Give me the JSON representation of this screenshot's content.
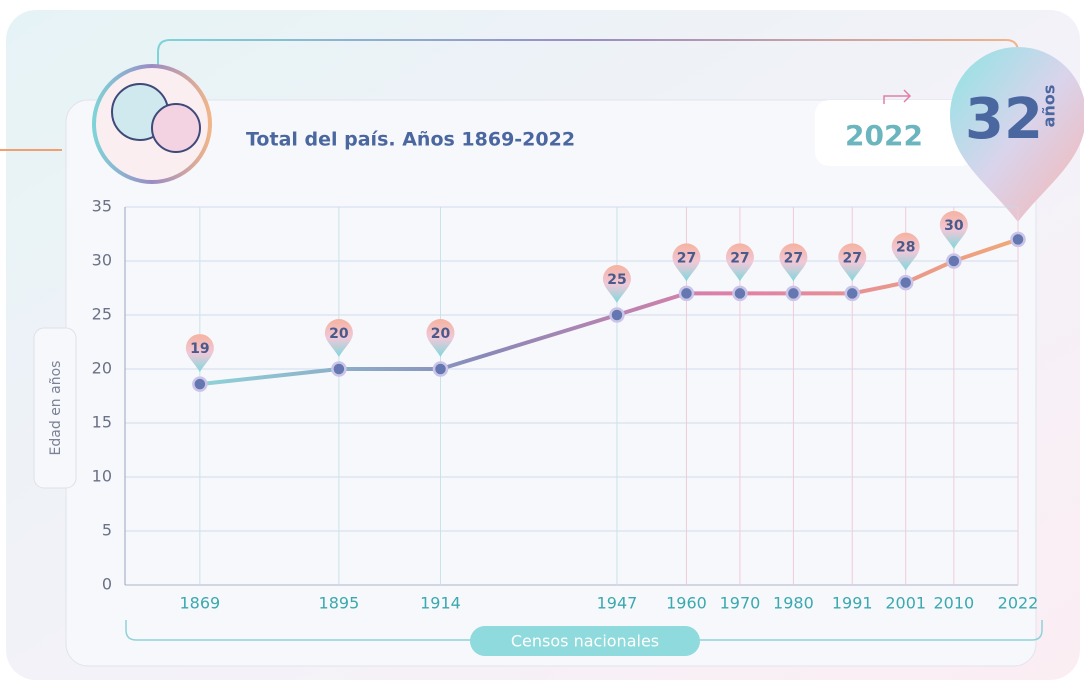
{
  "chart_data": {
    "type": "line",
    "title": "Total del país. Años 1869-2022",
    "y_label": "Edad en años",
    "x_label": "Censos nacionales",
    "x": [
      1869,
      1895,
      1914,
      1947,
      1960,
      1970,
      1980,
      1991,
      2001,
      2010,
      2022
    ],
    "values": [
      18.6,
      20,
      20,
      25,
      27,
      27,
      27,
      27,
      28,
      30,
      32
    ],
    "value_labels": [
      "19",
      "20",
      "20",
      "25",
      "27",
      "27",
      "27",
      "27",
      "28",
      "30",
      "32"
    ],
    "highlight_unit": "años",
    "xlim": [
      1855,
      2022
    ],
    "xticks": [
      1869,
      1895,
      1914,
      1947,
      1960,
      1970,
      1980,
      1991,
      2001,
      2010,
      2022
    ],
    "ylim": [
      0,
      35
    ],
    "yticks": [
      0,
      5,
      10,
      15,
      20,
      25,
      30,
      35
    ],
    "grid": true
  }
}
